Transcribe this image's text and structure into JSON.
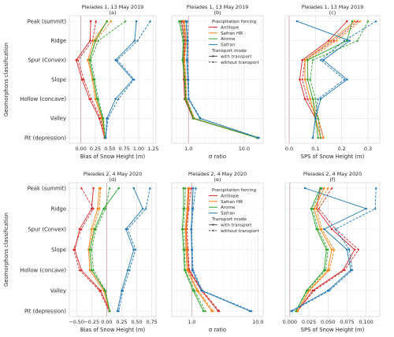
{
  "y_categories": [
    "Peak (summit)",
    "Ridge",
    "Spur (Convex)",
    "Slope",
    "Hollow (concave)",
    "Valley",
    "Pit (depression)"
  ],
  "y_axis_label": "Geomorphons classification",
  "legend": {
    "forcing_title": "Precipitation forcing",
    "forcings": [
      "Antilope",
      "Safran HR",
      "Arome",
      "Safran"
    ],
    "transport_title": "Transport mode",
    "transport": [
      "with transport",
      "without transport"
    ]
  },
  "colors": {
    "Antilope": "#d62728",
    "Safran HR": "#ff7f0e",
    "Arome": "#2ca02c",
    "Safran": "#1f77b4",
    "reference": "#c9a0a0"
  },
  "chart_data": [
    {
      "id": "a",
      "type": "line",
      "title": "Pleiades 1, 13 May 2019",
      "panel_label": "(a)",
      "xlabel": "Bias of Snow Height (m)",
      "xlim": [
        -0.2,
        1.3
      ],
      "xscale": "linear",
      "xticks": [
        0.0,
        0.25,
        0.5,
        0.75,
        1.0,
        1.25
      ],
      "xtick_labels": [
        "0.00",
        "0.25",
        "0.50",
        "0.75",
        "1.00",
        "1.25"
      ],
      "reference_line": 0,
      "series": [
        {
          "forcing": "Antilope",
          "transport": "with transport",
          "values": [
            0.17,
            0.16,
            -0.08,
            0.02,
            0.15,
            0.32,
            0.41
          ]
        },
        {
          "forcing": "Antilope",
          "transport": "without transport",
          "values": [
            0.26,
            0.2,
            -0.05,
            0.05,
            0.18,
            0.34,
            0.41
          ]
        },
        {
          "forcing": "Safran HR",
          "transport": "with transport",
          "values": [
            0.45,
            0.22,
            0.12,
            0.2,
            0.25,
            0.36,
            0.42
          ]
        },
        {
          "forcing": "Safran HR",
          "transport": "without transport",
          "values": [
            0.52,
            0.26,
            0.14,
            0.22,
            0.27,
            0.37,
            0.42
          ]
        },
        {
          "forcing": "Arome",
          "transport": "with transport",
          "values": [
            0.45,
            0.25,
            0.15,
            0.22,
            0.28,
            0.38,
            0.42
          ]
        },
        {
          "forcing": "Arome",
          "transport": "without transport",
          "values": [
            0.77,
            0.3,
            0.17,
            0.24,
            0.3,
            0.39,
            0.42
          ]
        },
        {
          "forcing": "Safran",
          "transport": "with transport",
          "values": [
            0.96,
            0.93,
            0.6,
            0.9,
            0.6,
            0.45,
            0.43
          ]
        },
        {
          "forcing": "Safran",
          "transport": "without transport",
          "values": [
            1.2,
            0.98,
            0.63,
            0.92,
            0.65,
            0.47,
            0.43
          ]
        }
      ]
    },
    {
      "id": "b",
      "type": "line",
      "title": "Pleiades 1, 13 May 2019",
      "panel_label": "(b)",
      "xlabel": "σ ratio",
      "xlim": [
        0.5,
        22
      ],
      "xscale": "log",
      "xticks": [
        1,
        10
      ],
      "xtick_labels": [
        "1.0",
        "10.0"
      ],
      "reference_line": 1,
      "series": [
        {
          "forcing": "Antilope",
          "transport": "with transport",
          "values": [
            0.75,
            0.85,
            0.8,
            0.82,
            0.85,
            1.2,
            17.0
          ]
        },
        {
          "forcing": "Antilope",
          "transport": "without transport",
          "values": [
            0.8,
            0.88,
            0.82,
            0.85,
            0.88,
            1.25,
            17.5
          ]
        },
        {
          "forcing": "Safran HR",
          "transport": "with transport",
          "values": [
            0.82,
            0.9,
            0.83,
            0.88,
            0.9,
            1.25,
            17.0
          ]
        },
        {
          "forcing": "Safran HR",
          "transport": "without transport",
          "values": [
            0.85,
            0.92,
            0.85,
            0.9,
            0.92,
            1.28,
            17.5
          ]
        },
        {
          "forcing": "Arome",
          "transport": "with transport",
          "values": [
            0.68,
            0.8,
            0.78,
            0.85,
            0.88,
            1.22,
            17.0
          ]
        },
        {
          "forcing": "Arome",
          "transport": "without transport",
          "values": [
            0.72,
            0.82,
            0.8,
            0.87,
            0.9,
            1.24,
            17.5
          ]
        },
        {
          "forcing": "Safran",
          "transport": "with transport",
          "values": [
            0.9,
            0.95,
            0.93,
            0.97,
            1.0,
            1.6,
            18.0
          ]
        },
        {
          "forcing": "Safran",
          "transport": "without transport",
          "values": [
            0.95,
            0.98,
            0.96,
            1.0,
            1.02,
            1.65,
            18.5
          ]
        }
      ]
    },
    {
      "id": "c",
      "type": "line",
      "title": "Pleiades 1, 13 May 2019",
      "panel_label": "(c)",
      "xlabel": "SPS of Snow Height (m)",
      "xlim": [
        -0.015,
        0.345
      ],
      "xscale": "linear",
      "xticks": [
        0.0,
        0.1,
        0.2,
        0.3
      ],
      "xtick_labels": [
        "0.0",
        "0.1",
        "0.2",
        "0.3"
      ],
      "reference_line": 0,
      "series": [
        {
          "forcing": "Antilope",
          "transport": "with transport",
          "values": [
            0.22,
            0.15,
            0.05,
            0.04,
            0.06,
            0.1,
            0.12
          ]
        },
        {
          "forcing": "Antilope",
          "transport": "without transport",
          "values": [
            0.26,
            0.17,
            0.06,
            0.05,
            0.07,
            0.11,
            0.13
          ]
        },
        {
          "forcing": "Safran HR",
          "transport": "with transport",
          "values": [
            0.25,
            0.16,
            0.06,
            0.06,
            0.08,
            0.1,
            0.12
          ]
        },
        {
          "forcing": "Safran HR",
          "transport": "without transport",
          "values": [
            0.27,
            0.18,
            0.07,
            0.07,
            0.09,
            0.11,
            0.13
          ]
        },
        {
          "forcing": "Arome",
          "transport": "with transport",
          "values": [
            0.24,
            0.22,
            0.07,
            0.07,
            0.09,
            0.1,
            0.11
          ]
        },
        {
          "forcing": "Arome",
          "transport": "without transport",
          "values": [
            0.3,
            0.26,
            0.09,
            0.08,
            0.1,
            0.11,
            0.12
          ]
        },
        {
          "forcing": "Safran",
          "transport": "with transport",
          "values": [
            0.03,
            0.23,
            0.13,
            0.22,
            0.12,
            0.1,
            0.09
          ]
        },
        {
          "forcing": "Safran",
          "transport": "without transport",
          "values": [
            0.33,
            0.21,
            0.12,
            0.21,
            0.11,
            0.1,
            0.09
          ]
        }
      ]
    },
    {
      "id": "d",
      "type": "line",
      "title": "Pleiades 2, 4 May 2020",
      "panel_label": "(d)",
      "xlabel": "Bias of Snow Height (m)",
      "xlim": [
        -0.62,
        0.82
      ],
      "xscale": "linear",
      "xticks": [
        -0.5,
        -0.25,
        0.0,
        0.25,
        0.5,
        0.75
      ],
      "xtick_labels": [
        "−0.50",
        "−0.25",
        "0.00",
        "0.25",
        "0.50",
        "0.75"
      ],
      "reference_line": 0,
      "series": [
        {
          "forcing": "Antilope",
          "transport": "with transport",
          "values": [
            -0.22,
            -0.25,
            -0.45,
            -0.53,
            -0.42,
            -0.1,
            0.05
          ]
        },
        {
          "forcing": "Antilope",
          "transport": "without transport",
          "values": [
            -0.42,
            -0.22,
            -0.42,
            -0.55,
            -0.45,
            -0.12,
            0.04
          ]
        },
        {
          "forcing": "Safran HR",
          "transport": "with transport",
          "values": [
            -0.12,
            -0.15,
            -0.25,
            -0.3,
            -0.28,
            -0.05,
            0.05
          ]
        },
        {
          "forcing": "Safran HR",
          "transport": "without transport",
          "values": [
            -0.1,
            -0.12,
            -0.22,
            -0.28,
            -0.25,
            -0.03,
            0.05
          ]
        },
        {
          "forcing": "Arome",
          "transport": "with transport",
          "values": [
            0.2,
            -0.05,
            -0.2,
            -0.28,
            -0.25,
            -0.03,
            0.05
          ]
        },
        {
          "forcing": "Arome",
          "transport": "without transport",
          "values": [
            0.05,
            -0.02,
            -0.18,
            -0.25,
            -0.22,
            -0.02,
            0.05
          ]
        },
        {
          "forcing": "Safran",
          "transport": "with transport",
          "values": [
            0.45,
            0.6,
            0.32,
            0.45,
            0.35,
            0.25,
            0.18
          ]
        },
        {
          "forcing": "Safran",
          "transport": "without transport",
          "values": [
            0.72,
            0.65,
            0.35,
            0.48,
            0.38,
            0.27,
            0.2
          ]
        }
      ]
    },
    {
      "id": "e",
      "type": "line",
      "title": "Pleiades 2, 4 May 2020",
      "panel_label": "(e)",
      "xlabel": "σ ratio",
      "xlim": [
        0.5,
        12
      ],
      "xscale": "log",
      "xticks": [
        1,
        10
      ],
      "xtick_labels": [
        "1.0",
        "10.0"
      ],
      "reference_line": 1,
      "series": [
        {
          "forcing": "Antilope",
          "transport": "with transport",
          "values": [
            0.9,
            0.88,
            0.82,
            0.85,
            0.9,
            1.4,
            2.5
          ]
        },
        {
          "forcing": "Antilope",
          "transport": "without transport",
          "values": [
            0.98,
            0.9,
            0.85,
            0.88,
            0.92,
            1.45,
            2.6
          ]
        },
        {
          "forcing": "Safran HR",
          "transport": "with transport",
          "values": [
            0.88,
            0.85,
            0.8,
            0.82,
            0.85,
            1.2,
            2.0
          ]
        },
        {
          "forcing": "Safran HR",
          "transport": "without transport",
          "values": [
            0.92,
            0.88,
            0.82,
            0.85,
            0.88,
            1.25,
            2.1
          ]
        },
        {
          "forcing": "Arome",
          "transport": "with transport",
          "values": [
            0.75,
            0.75,
            0.72,
            0.75,
            0.78,
            1.05,
            1.5
          ]
        },
        {
          "forcing": "Arome",
          "transport": "without transport",
          "values": [
            0.8,
            0.78,
            0.75,
            0.78,
            0.8,
            1.1,
            1.6
          ]
        },
        {
          "forcing": "Safran",
          "transport": "with transport",
          "values": [
            1.05,
            1.02,
            0.98,
            1.0,
            1.02,
            1.4,
            7.5
          ]
        },
        {
          "forcing": "Safran",
          "transport": "without transport",
          "values": [
            1.15,
            1.05,
            1.0,
            1.02,
            1.05,
            1.45,
            8.0
          ]
        }
      ]
    },
    {
      "id": "f",
      "type": "line",
      "title": "Pleiades 2, 4 May 2020",
      "panel_label": "(f)",
      "xlabel": "SPS of Snow Height (m)",
      "xlim": [
        -0.006,
        0.118
      ],
      "xscale": "linear",
      "xticks": [
        0.0,
        0.025,
        0.05,
        0.075,
        0.1
      ],
      "xtick_labels": [
        "0.000",
        "0.025",
        "0.050",
        "0.075",
        "0.100"
      ],
      "reference_line": 0,
      "series": [
        {
          "forcing": "Antilope",
          "transport": "with transport",
          "values": [
            0.04,
            0.035,
            0.055,
            0.085,
            0.07,
            0.03,
            0.01
          ]
        },
        {
          "forcing": "Antilope",
          "transport": "without transport",
          "values": [
            0.055,
            0.038,
            0.06,
            0.09,
            0.072,
            0.032,
            0.01
          ]
        },
        {
          "forcing": "Safran HR",
          "transport": "with transport",
          "values": [
            0.045,
            0.032,
            0.04,
            0.055,
            0.05,
            0.025,
            0.01
          ]
        },
        {
          "forcing": "Safran HR",
          "transport": "without transport",
          "values": [
            0.05,
            0.035,
            0.042,
            0.058,
            0.052,
            0.026,
            0.01
          ]
        },
        {
          "forcing": "Arome",
          "transport": "with transport",
          "values": [
            0.04,
            0.028,
            0.035,
            0.048,
            0.045,
            0.022,
            0.008
          ]
        },
        {
          "forcing": "Arome",
          "transport": "without transport",
          "values": [
            0.042,
            0.03,
            0.037,
            0.05,
            0.047,
            0.023,
            0.008
          ]
        },
        {
          "forcing": "Safran",
          "transport": "with transport",
          "values": [
            0.02,
            0.1,
            0.045,
            0.075,
            0.08,
            0.05,
            0.002
          ]
        },
        {
          "forcing": "Safran",
          "transport": "without transport",
          "values": [
            0.113,
            0.112,
            0.06,
            0.078,
            0.082,
            0.052,
            0.003
          ]
        }
      ]
    }
  ]
}
